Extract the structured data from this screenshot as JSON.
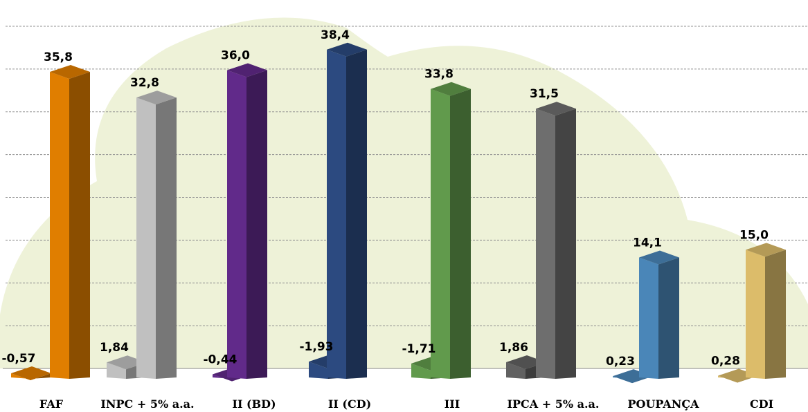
{
  "chart_data": {
    "type": "bar",
    "categories": [
      "FAF",
      "INPC + 5% a.a.",
      "II (BD)",
      "II (CD)",
      "III",
      "IPCA + 5% a.a.",
      "POUPANÇA",
      "CDI"
    ],
    "series": [
      {
        "values": [
          -0.57,
          1.84,
          -0.44,
          -1.93,
          -1.71,
          1.86,
          0.23,
          0.28
        ],
        "labels": [
          "-0,57",
          "1,84",
          "-0,44",
          "-1,93",
          "-1,71",
          "1,86",
          "0,23",
          "0,28"
        ],
        "colors": [
          "#e07e00",
          "#c0c0c0",
          "#612a8a",
          "#2c4a80",
          "#619a4c",
          "#616161",
          "#4a86b8",
          "#dcbc6a"
        ]
      },
      {
        "values": [
          35.8,
          32.8,
          36.0,
          38.4,
          33.8,
          31.5,
          14.1,
          15.0
        ],
        "labels": [
          "35,8",
          "32,8",
          "36,0",
          "38,4",
          "33,8",
          "31,5",
          "14,1",
          "15,0"
        ],
        "colors": [
          "#e07e00",
          "#c0c0c0",
          "#612a8a",
          "#2c4a80",
          "#619a4c",
          "#6e6e6e",
          "#4a86b8",
          "#dcbc6a"
        ]
      }
    ],
    "ylim": [
      0,
      40
    ],
    "grid": true,
    "gridlines": [
      0,
      5,
      10,
      15,
      20,
      25,
      30,
      35,
      40
    ],
    "background_color": "#eef2d8"
  }
}
